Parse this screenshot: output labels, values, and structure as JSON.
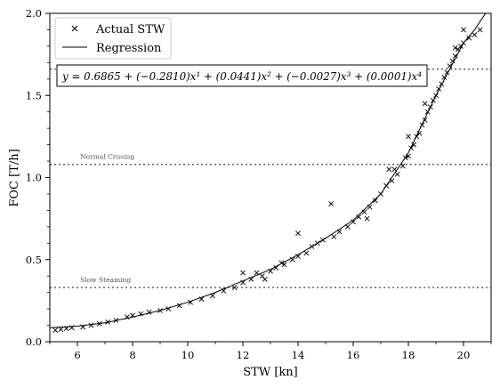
{
  "chart_data": {
    "type": "scatter",
    "xlabel": "STW [kn]",
    "ylabel": "FOC [T/h]",
    "xlim": [
      5,
      21
    ],
    "ylim": [
      0,
      2
    ],
    "x_ticks": [
      6,
      8,
      10,
      12,
      14,
      16,
      18,
      20
    ],
    "y_ticks": [
      0.0,
      0.5,
      1.0,
      1.5,
      2.0
    ],
    "x_tick_labels": [
      "6",
      "8",
      "10",
      "12",
      "14",
      "16",
      "18",
      "20"
    ],
    "y_tick_labels": [
      "0.0",
      "0.5",
      "1.0",
      "1.5",
      "2.0"
    ],
    "grid": false,
    "legend": {
      "placement": "top-left",
      "entries": [
        {
          "label": "Actual STW",
          "marker": "x"
        },
        {
          "label": "Regression",
          "marker": "line"
        }
      ]
    },
    "equation_text": "y = 0.6865 + (−0.2810)x¹ + (0.0441)x² + (−0.0027)x³ + (0.0001)x⁴",
    "regression": {
      "name": "Regression",
      "coefficients": [
        0.6865,
        -0.281,
        0.0441,
        -0.0027,
        0.0001
      ]
    },
    "reference_lines": [
      {
        "label": "Slow Steaming",
        "y": 0.33
      },
      {
        "label": "Normal Crusing",
        "y": 1.08
      },
      {
        "label": "",
        "y": 1.66
      }
    ],
    "series": [
      {
        "name": "Actual STW",
        "points": [
          [
            5.2,
            0.07
          ],
          [
            5.4,
            0.075
          ],
          [
            5.6,
            0.08
          ],
          [
            5.8,
            0.085
          ],
          [
            6.2,
            0.09
          ],
          [
            6.5,
            0.1
          ],
          [
            6.8,
            0.11
          ],
          [
            7.1,
            0.12
          ],
          [
            7.4,
            0.13
          ],
          [
            7.8,
            0.15
          ],
          [
            8.0,
            0.16
          ],
          [
            8.3,
            0.17
          ],
          [
            8.6,
            0.18
          ],
          [
            9.0,
            0.19
          ],
          [
            9.3,
            0.2
          ],
          [
            9.7,
            0.22
          ],
          [
            10.1,
            0.24
          ],
          [
            10.5,
            0.26
          ],
          [
            10.9,
            0.28
          ],
          [
            11.3,
            0.31
          ],
          [
            11.7,
            0.33
          ],
          [
            12.0,
            0.36
          ],
          [
            12.0,
            0.42
          ],
          [
            12.3,
            0.38
          ],
          [
            12.5,
            0.42
          ],
          [
            12.7,
            0.4
          ],
          [
            13.0,
            0.43
          ],
          [
            13.2,
            0.45
          ],
          [
            13.5,
            0.47
          ],
          [
            13.8,
            0.5
          ],
          [
            14.0,
            0.52
          ],
          [
            14.0,
            0.66
          ],
          [
            14.3,
            0.54
          ],
          [
            14.5,
            0.58
          ],
          [
            14.7,
            0.6
          ],
          [
            14.9,
            0.62
          ],
          [
            15.2,
            0.84
          ],
          [
            15.3,
            0.64
          ],
          [
            15.5,
            0.67
          ],
          [
            15.8,
            0.7
          ],
          [
            16.0,
            0.73
          ],
          [
            16.2,
            0.76
          ],
          [
            16.4,
            0.79
          ],
          [
            16.6,
            0.82
          ],
          [
            16.8,
            0.86
          ],
          [
            17.0,
            0.9
          ],
          [
            17.2,
            0.95
          ],
          [
            17.4,
            0.98
          ],
          [
            17.5,
            1.05
          ],
          [
            17.6,
            1.02
          ],
          [
            17.8,
            1.07
          ],
          [
            17.9,
            1.12
          ],
          [
            18.0,
            1.13
          ],
          [
            18.1,
            1.18
          ],
          [
            18.2,
            1.2
          ],
          [
            18.3,
            1.25
          ],
          [
            18.4,
            1.27
          ],
          [
            18.5,
            1.32
          ],
          [
            18.6,
            1.35
          ],
          [
            18.7,
            1.4
          ],
          [
            18.8,
            1.43
          ],
          [
            18.9,
            1.47
          ],
          [
            19.0,
            1.5
          ],
          [
            19.1,
            1.54
          ],
          [
            19.2,
            1.57
          ],
          [
            19.3,
            1.61
          ],
          [
            19.4,
            1.64
          ],
          [
            19.5,
            1.68
          ],
          [
            19.6,
            1.71
          ],
          [
            19.7,
            1.74
          ],
          [
            19.8,
            1.78
          ],
          [
            19.9,
            1.8
          ],
          [
            20.0,
            1.82
          ],
          [
            20.2,
            1.85
          ],
          [
            20.4,
            1.87
          ],
          [
            20.6,
            1.9
          ],
          [
            20.0,
            1.9
          ],
          [
            19.7,
            1.79
          ],
          [
            17.3,
            1.05
          ],
          [
            16.5,
            0.75
          ],
          [
            18.0,
            1.25
          ],
          [
            18.6,
            1.45
          ],
          [
            13.4,
            0.48
          ],
          [
            12.8,
            0.38
          ]
        ]
      }
    ]
  }
}
